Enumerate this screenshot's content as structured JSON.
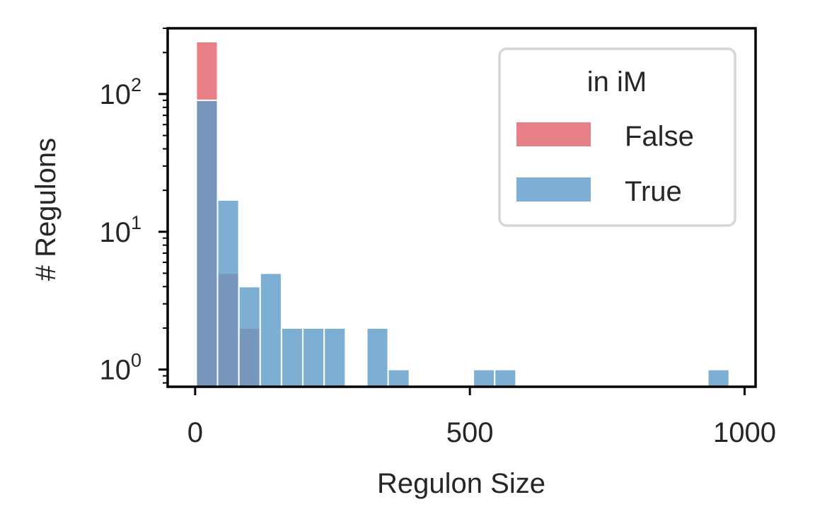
{
  "chart_data": {
    "type": "bar",
    "subtype": "overlapping-histogram",
    "title": "",
    "xlabel": "Regulon Size",
    "ylabel": "# Regulons",
    "xlim": [
      -50,
      1020
    ],
    "ylim": [
      0.75,
      300
    ],
    "y_scale": "log",
    "grid": false,
    "x_ticks": [
      {
        "value": 0,
        "label": "0"
      },
      {
        "value": 500,
        "label": "500"
      },
      {
        "value": 1000,
        "label": "1000"
      }
    ],
    "y_ticks": [
      {
        "value": 1,
        "base": "10",
        "exp": "0"
      },
      {
        "value": 10,
        "base": "10",
        "exp": "1"
      },
      {
        "value": 100,
        "base": "10",
        "exp": "2"
      }
    ],
    "legend": {
      "title": "in iM",
      "placement": "top-right"
    },
    "bin_edges": [
      2,
      40.8,
      79.6,
      118.4,
      157.2,
      196,
      234.8,
      273.6,
      312.4,
      351.2,
      390,
      428.8,
      467.6,
      506.4,
      545.2,
      584,
      622.8,
      661.6,
      700.4,
      739.2,
      778,
      816.8,
      855.6,
      894.4,
      933.2,
      972
    ],
    "series": [
      {
        "name": "False",
        "color": "#e06068",
        "opacity": 0.8,
        "values": [
          240,
          5,
          2,
          0,
          0,
          0,
          0,
          0,
          0,
          0,
          0,
          0,
          0,
          0,
          0,
          0,
          0,
          0,
          0,
          0,
          0,
          0,
          0,
          0,
          0
        ]
      },
      {
        "name": "True",
        "color": "#5b9bc8",
        "opacity": 0.8,
        "values": [
          90,
          17,
          4,
          5,
          2,
          2,
          2,
          0,
          2,
          1,
          0,
          0,
          0,
          1,
          1,
          0,
          0,
          0,
          0,
          0,
          0,
          0,
          0,
          0,
          1
        ]
      }
    ]
  }
}
